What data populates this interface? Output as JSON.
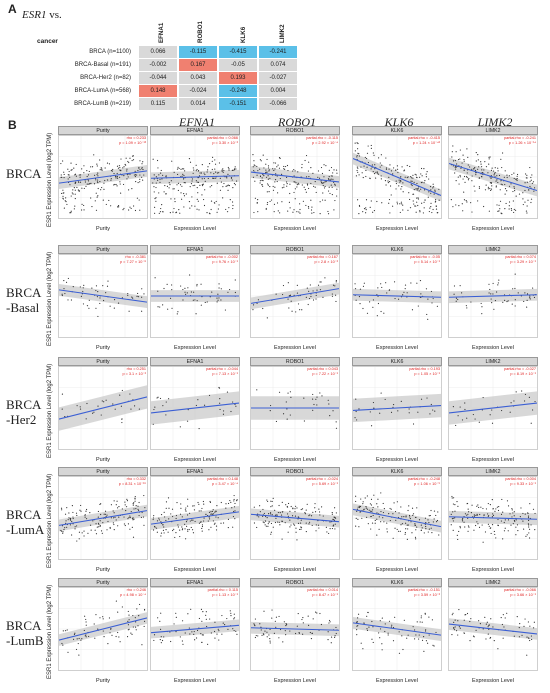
{
  "panel_a": {
    "letter": "A",
    "title_gene": "ESR1",
    "title_suffix": " vs.",
    "header_cancer": "cancer",
    "genes": [
      "EFNA1",
      "ROBO1",
      "KLK6",
      "LIMK2"
    ],
    "rows": [
      {
        "label": "BRCA (n=1100)",
        "values": [
          "0.066",
          "-0.115",
          "-0.415",
          "-0.241"
        ]
      },
      {
        "label": "BRCA-Basal (n=191)",
        "values": [
          "-0.002",
          "0.167",
          "-0.05",
          "0.074"
        ]
      },
      {
        "label": "BRCA-Her2 (n=82)",
        "values": [
          "-0.044",
          "0.043",
          "0.193",
          "-0.027"
        ]
      },
      {
        "label": "BRCA-LumA (n=568)",
        "values": [
          "0.148",
          "-0.024",
          "-0.248",
          "0.004"
        ]
      },
      {
        "label": "BRCA-LumB (n=219)",
        "values": [
          "0.115",
          "0.014",
          "-0.151",
          "-0.066"
        ]
      }
    ],
    "colors": {
      "neutral": "#d9d9d9",
      "red": "#f08070",
      "blue": "#5bc0e8"
    }
  },
  "panel_b": {
    "letter": "B",
    "col_headers": [
      "EFNA1",
      "ROBO1",
      "KLK6",
      "LIMK2"
    ],
    "row_headers": [
      [
        "BRCA"
      ],
      [
        "BRCA",
        "-Basal"
      ],
      [
        "BRCA",
        "-Her2"
      ],
      [
        "BRCA",
        "-LumA"
      ],
      [
        "BRCA",
        "-LumB"
      ]
    ],
    "ylabel": "ESR1 Expression Level (log2 TPM)",
    "xlabel_purity": "Purity",
    "xlabel_expr": "Expression Level",
    "facet_titles": [
      "Purity",
      "EFNA1",
      "ROBO1",
      "KLK6",
      "LIMK2"
    ],
    "stats": [
      [
        [
          "rho = 0.233",
          "p = 1.09 × 10⁻¹³"
        ],
        [
          "partial.rho = 0.066",
          "p = 3.30 × 10⁻²"
        ],
        [
          "partial.rho = -0.115",
          "p = 2.92 × 10⁻⁴"
        ],
        [
          "partial.rho = -0.415",
          "p = 1.24 × 10⁻⁴²"
        ],
        [
          "partial.rho = -0.241",
          "p = 1.26 × 10⁻¹⁴"
        ]
      ],
      [
        [
          "rho = -0.381",
          "p = 7.27 × 10⁻⁸"
        ],
        [
          "partial.rho = -0.002",
          "p = 9.76 × 10⁻¹"
        ],
        [
          "partial.rho = 0.167",
          "p = 2.8 × 10⁻²"
        ],
        [
          "partial.rho = -0.05",
          "p = 5.14 × 10⁻¹"
        ],
        [
          "partial.rho = 0.074",
          "p = 3.29 × 10⁻¹"
        ]
      ],
      [
        [
          "rho = 0.251",
          "p = 3.1 × 10⁻²"
        ],
        [
          "partial.rho = -0.044",
          "p = 7.13 × 10⁻¹"
        ],
        [
          "partial.rho = 0.043",
          "p = 7.22 × 10⁻¹"
        ],
        [
          "partial.rho = 0.193",
          "p = 1.05 × 10⁻¹"
        ],
        [
          "partial.rho = -0.027",
          "p = 8.19 × 10⁻¹"
        ]
      ],
      [
        [
          "rho = 0.332",
          "p = 8.31 × 10⁻¹⁶"
        ],
        [
          "partial.rho = 0.148",
          "p = 3.47 × 10⁻⁴"
        ],
        [
          "partial.rho = -0.024",
          "p = 5.69 × 10⁻¹"
        ],
        [
          "partial.rho = -0.248",
          "p = 1.06 × 10⁻⁹"
        ],
        [
          "partial.rho = 0.004",
          "p = 9.33 × 10⁻¹"
        ]
      ],
      [
        [
          "rho = 0.246",
          "p = 4.98 × 10⁻⁴"
        ],
        [
          "partial.rho = 0.115",
          "p = 1.13 × 10⁻¹"
        ],
        [
          "partial.rho = 0.014",
          "p = 8.47 × 10⁻¹"
        ],
        [
          "partial.rho = -0.151",
          "p = 3.59 × 10⁻²"
        ],
        [
          "partial.rho = -0.066",
          "p = 3.66 × 10⁻¹"
        ]
      ]
    ],
    "colors": {
      "point": "#333333",
      "line": "#3b5fd4",
      "band": "#c8c8c8",
      "strip": "#d6d6d6"
    }
  }
}
